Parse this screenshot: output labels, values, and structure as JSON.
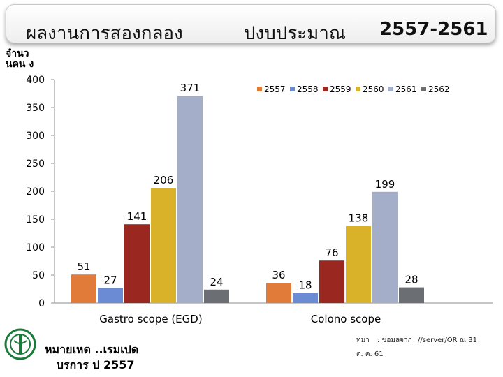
{
  "header": {
    "title_part1": "ผลงานการสองกลอง",
    "title_part2": "ปงบประมาณ",
    "title_years": "2557-2561"
  },
  "chart_data": {
    "type": "bar",
    "ylabel": "จำนว นคน ง",
    "ylim": [
      0,
      400
    ],
    "yticks": [
      0,
      50,
      100,
      150,
      200,
      250,
      300,
      350,
      400
    ],
    "grid": false,
    "legend_position": "top-right",
    "categories": [
      "Gastro scope (EGD)",
      "Colono scope"
    ],
    "series": [
      {
        "name": "2557",
        "color": "#e07b39",
        "values": [
          51,
          36
        ]
      },
      {
        "name": "2558",
        "color": "#6b8cd4",
        "values": [
          27,
          18
        ]
      },
      {
        "name": "2559",
        "color": "#9a2820",
        "values": [
          141,
          76
        ]
      },
      {
        "name": "2560",
        "color": "#d9b22a",
        "values": [
          206,
          138
        ]
      },
      {
        "name": "2561",
        "color": "#a4aec8",
        "values": [
          371,
          199
        ]
      },
      {
        "name": "2562",
        "color": "#6b6e73",
        "values": [
          24,
          28
        ]
      }
    ]
  },
  "footer": {
    "note": "หมายเหต ..เรมเปด\n   บรการ ป 2557",
    "source_1": "ทมา",
    "source_2": ": ขอมลจาก",
    "source_3": "//server/OR ณ 31",
    "source_4": "ต. ค. 61"
  }
}
